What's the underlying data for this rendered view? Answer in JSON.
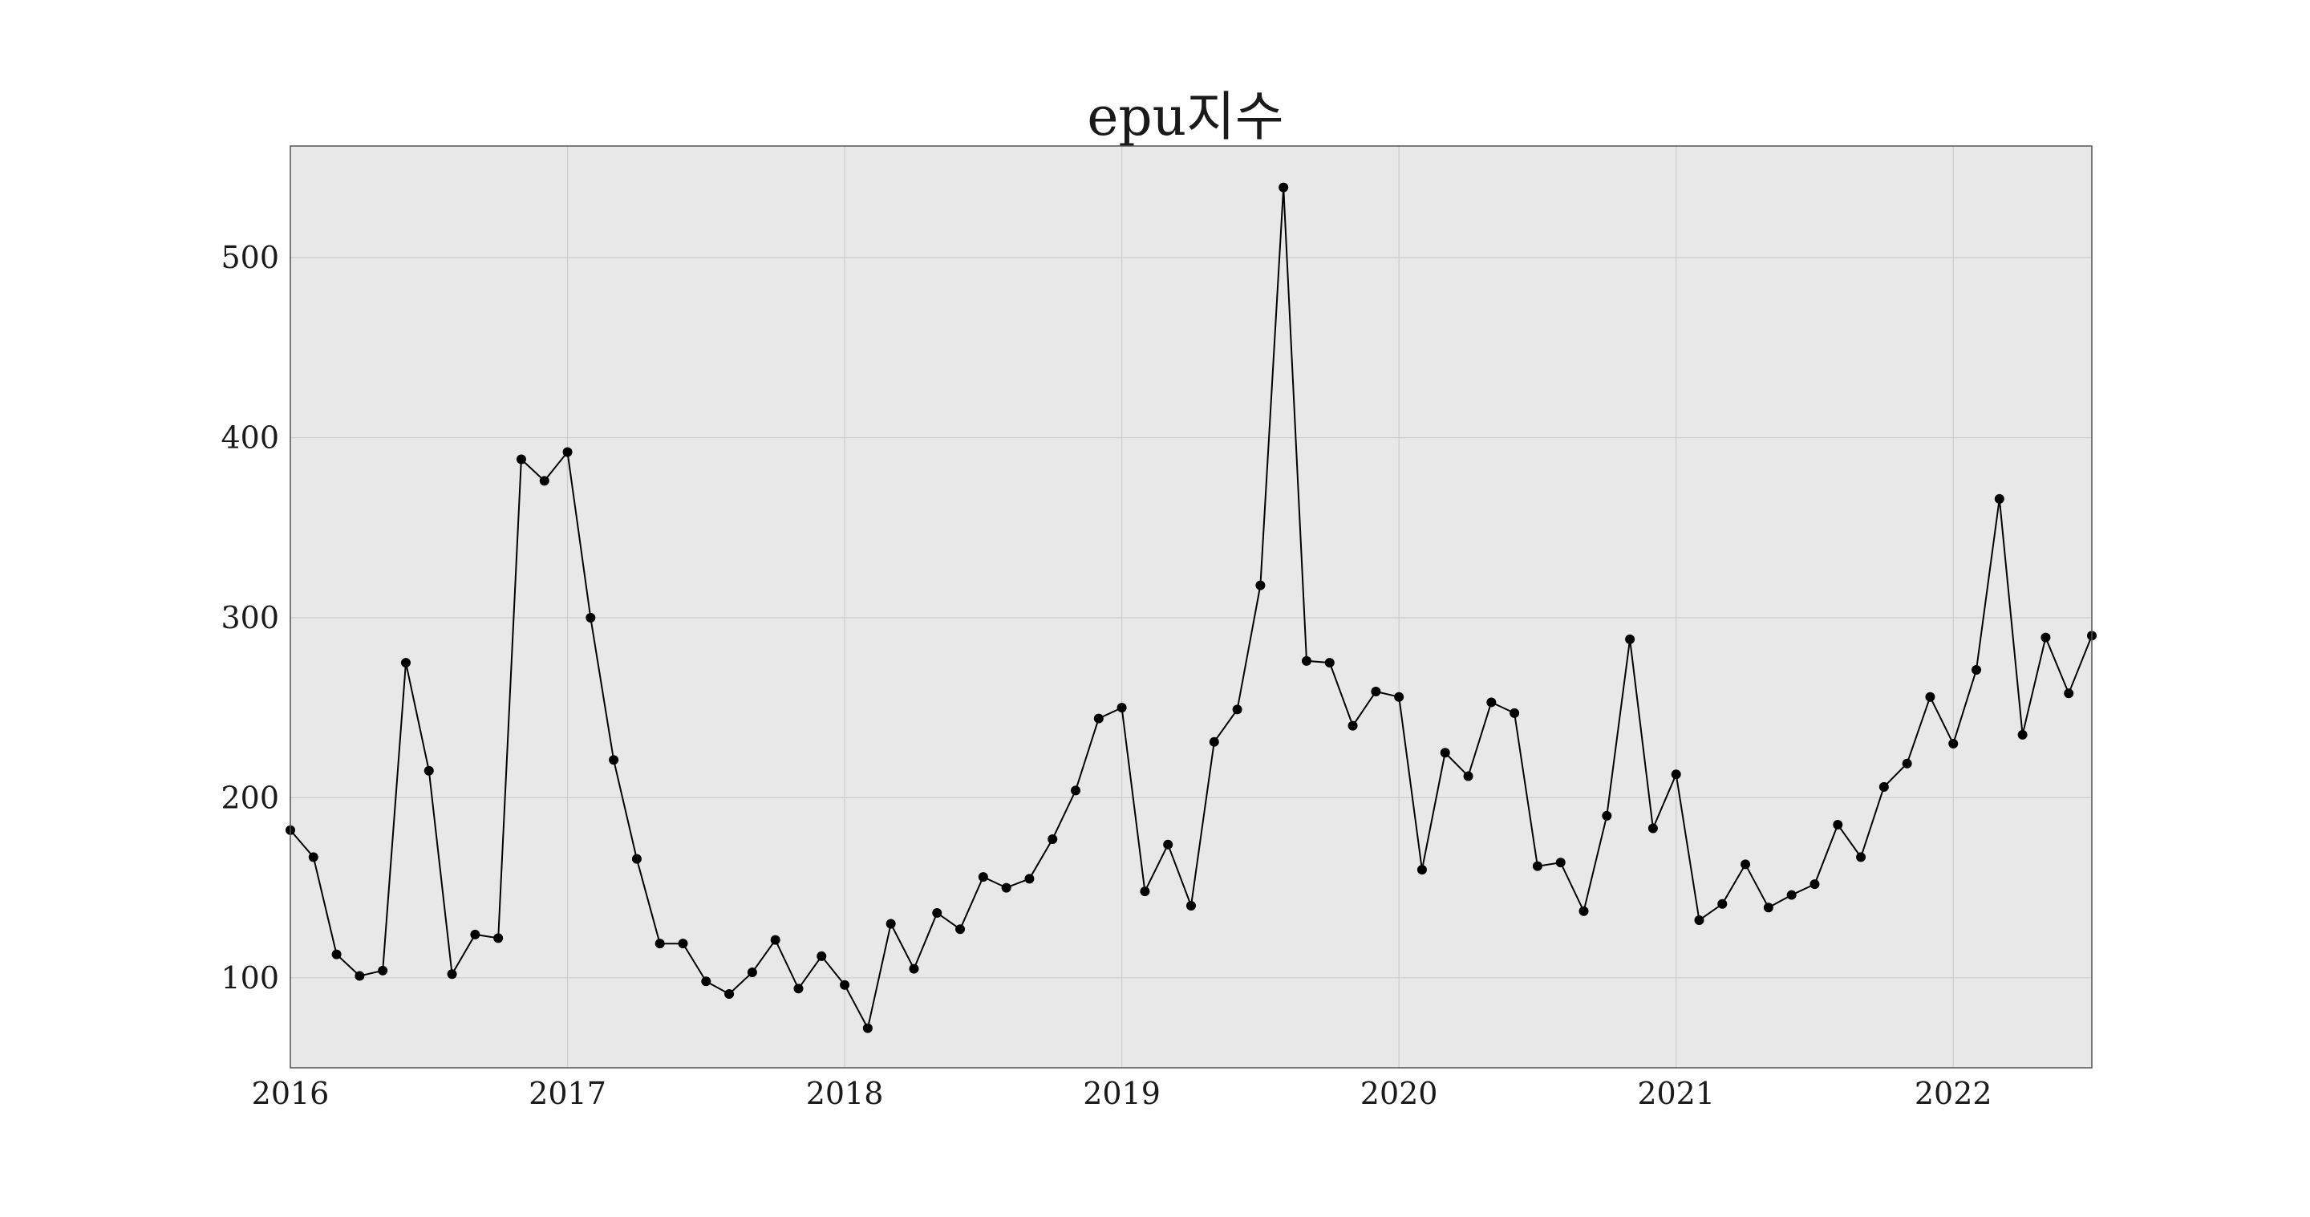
{
  "chart_data": {
    "type": "line",
    "title": "epu지수",
    "xlabel": "",
    "ylabel": "",
    "x_ticks": [
      "2016",
      "2017",
      "2018",
      "2019",
      "2020",
      "2021",
      "2022"
    ],
    "y_ticks": [
      100,
      200,
      300,
      400,
      500
    ],
    "xlim": [
      "2016-01",
      "2022-07"
    ],
    "ylim": [
      50,
      562
    ],
    "grid": true,
    "colors": {
      "line": "#000000",
      "marker": "#000000",
      "plot_bg": "#e8e8e8",
      "grid": "#cccccc"
    },
    "series": [
      {
        "x": [
          "2016-01",
          "2016-02",
          "2016-03",
          "2016-04",
          "2016-05",
          "2016-06",
          "2016-07",
          "2016-08",
          "2016-09",
          "2016-10",
          "2016-11",
          "2016-12",
          "2017-01",
          "2017-02",
          "2017-03",
          "2017-04",
          "2017-05",
          "2017-06",
          "2017-07",
          "2017-08",
          "2017-09",
          "2017-10",
          "2017-11",
          "2017-12",
          "2018-01",
          "2018-02",
          "2018-03",
          "2018-04",
          "2018-05",
          "2018-06",
          "2018-07",
          "2018-08",
          "2018-09",
          "2018-10",
          "2018-11",
          "2018-12",
          "2019-01",
          "2019-02",
          "2019-03",
          "2019-04",
          "2019-05",
          "2019-06",
          "2019-07",
          "2019-08",
          "2019-09",
          "2019-10",
          "2019-11",
          "2019-12",
          "2020-01",
          "2020-02",
          "2020-03",
          "2020-04",
          "2020-05",
          "2020-06",
          "2020-07",
          "2020-08",
          "2020-09",
          "2020-10",
          "2020-11",
          "2020-12",
          "2021-01",
          "2021-02",
          "2021-03",
          "2021-04",
          "2021-05",
          "2021-06",
          "2021-07",
          "2021-08",
          "2021-09",
          "2021-10",
          "2021-11",
          "2021-12",
          "2022-01",
          "2022-02",
          "2022-03",
          "2022-04",
          "2022-05",
          "2022-06",
          "2022-07"
        ],
        "values": [
          182,
          167,
          113,
          101,
          104,
          275,
          215,
          102,
          124,
          122,
          388,
          376,
          392,
          300,
          221,
          166,
          119,
          119,
          98,
          91,
          103,
          121,
          94,
          112,
          96,
          72,
          130,
          105,
          136,
          127,
          156,
          150,
          155,
          177,
          204,
          244,
          250,
          148,
          174,
          140,
          231,
          249,
          318,
          539,
          276,
          275,
          240,
          259,
          256,
          160,
          225,
          212,
          253,
          247,
          162,
          164,
          137,
          190,
          288,
          183,
          213,
          132,
          141,
          163,
          139,
          146,
          152,
          185,
          167,
          206,
          219,
          256,
          230,
          271,
          366,
          235,
          289,
          258,
          290
        ]
      }
    ]
  }
}
